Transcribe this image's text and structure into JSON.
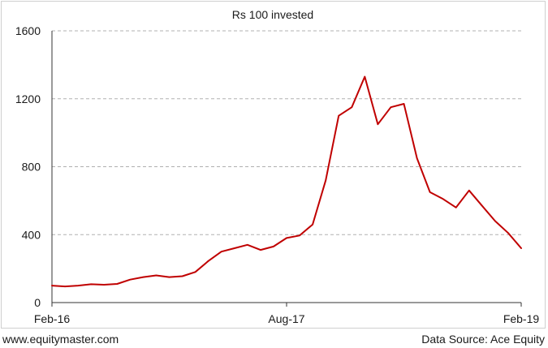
{
  "footer": {
    "left": "www.equitymaster.com",
    "right": "Data Source: Ace Equity"
  },
  "colors": {
    "series": "#c00000",
    "grid": "#b0b0b0",
    "axis": "#333333",
    "frame": "#cfcfcf"
  },
  "chart_data": {
    "type": "line",
    "title": "Rs 100 invested",
    "xlabel": "",
    "ylabel": "",
    "ylim": [
      0,
      1600
    ],
    "yticks": [
      0,
      400,
      800,
      1200,
      1600
    ],
    "ytick_labels": [
      "0",
      "400",
      "800",
      "1200",
      "1600"
    ],
    "xlim": [
      "2016-02",
      "2019-02"
    ],
    "xticks": [
      "2016-02",
      "2017-08",
      "2019-02"
    ],
    "xtick_labels": [
      "Feb-16",
      "Aug-17",
      "Feb-19"
    ],
    "grid": "horizontal dashed",
    "legend": "none",
    "series": [
      {
        "name": "",
        "x": [
          "2016-02",
          "2016-03",
          "2016-04",
          "2016-05",
          "2016-06",
          "2016-07",
          "2016-08",
          "2016-09",
          "2016-10",
          "2016-11",
          "2016-12",
          "2017-01",
          "2017-02",
          "2017-03",
          "2017-04",
          "2017-05",
          "2017-06",
          "2017-07",
          "2017-08",
          "2017-09",
          "2017-10",
          "2017-11",
          "2017-12",
          "2018-01",
          "2018-02",
          "2018-03",
          "2018-04",
          "2018-05",
          "2018-06",
          "2018-07",
          "2018-08",
          "2018-09",
          "2018-10",
          "2018-11",
          "2018-12",
          "2019-01",
          "2019-02"
        ],
        "values": [
          100,
          95,
          100,
          108,
          105,
          110,
          135,
          150,
          160,
          150,
          155,
          180,
          245,
          300,
          320,
          340,
          310,
          330,
          380,
          395,
          460,
          720,
          1100,
          1150,
          1330,
          1050,
          1150,
          1170,
          850,
          650,
          610,
          560,
          660,
          570,
          480,
          410,
          320
        ]
      }
    ]
  }
}
